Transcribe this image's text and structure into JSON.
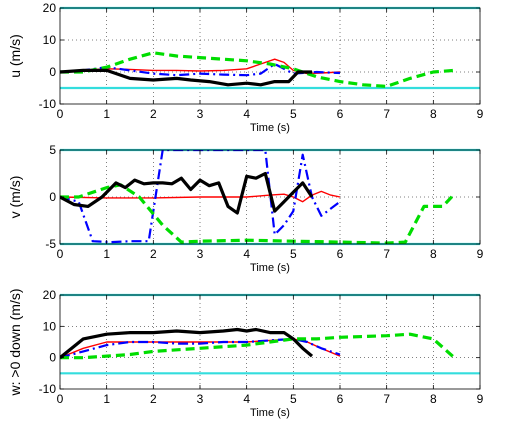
{
  "chart_data": [
    {
      "type": "line",
      "ylabel": "u (m/s)",
      "xlabel": "Time (s)",
      "xlim": [
        0,
        9
      ],
      "ylim": [
        -10,
        20
      ],
      "xticks": [
        0,
        1,
        2,
        3,
        4,
        5,
        6,
        7,
        8,
        9
      ],
      "yticks": [
        -10,
        0,
        10,
        20
      ],
      "grid": true,
      "limits": [
        20,
        -5
      ],
      "series": [
        {
          "color": "#ff0000",
          "style": "solid",
          "width": 1.4,
          "x": [
            0,
            0.5,
            1,
            1.5,
            2,
            2.5,
            3,
            3.5,
            4,
            4.3,
            4.6,
            4.8,
            5,
            5.3,
            5.6,
            6
          ],
          "y": [
            0,
            0.5,
            1,
            0.8,
            0.5,
            0.5,
            0.3,
            0.5,
            1,
            2.5,
            4,
            3,
            0.5,
            -0.5,
            -0.3,
            0
          ]
        },
        {
          "color": "#0000ff",
          "style": "dashdot",
          "width": 2.2,
          "x": [
            0,
            0.5,
            1,
            1.5,
            2,
            2.5,
            3,
            3.5,
            4,
            4.3,
            4.6,
            4.8,
            5,
            5.5,
            6
          ],
          "y": [
            0,
            0.5,
            1.5,
            0.5,
            -0.5,
            -1,
            -0.5,
            -0.8,
            -1,
            -0.5,
            2.5,
            1,
            -0.5,
            0,
            -0.3
          ]
        },
        {
          "color": "#00dd00",
          "style": "dashed",
          "width": 3.2,
          "x": [
            0,
            0.5,
            1,
            1.5,
            2,
            2.5,
            3,
            3.5,
            4,
            4.5,
            5,
            5.5,
            6,
            6.5,
            7,
            7.5,
            8,
            8.45
          ],
          "y": [
            0,
            0,
            1.5,
            4,
            6,
            5,
            4.5,
            4,
            3.5,
            2.5,
            1,
            -1.5,
            -3,
            -4,
            -4.5,
            -2,
            0,
            0.5
          ]
        },
        {
          "color": "#000000",
          "style": "solid",
          "width": 3.2,
          "x": [
            0,
            0.5,
            1,
            1.5,
            2,
            2.5,
            2.8,
            3.2,
            3.6,
            4,
            4.3,
            4.6,
            4.9,
            5.1,
            5.4
          ],
          "y": [
            0,
            0.5,
            0.5,
            -2,
            -2.5,
            -2,
            -2.5,
            -3,
            -4,
            -3.5,
            -4,
            -3,
            -3,
            0,
            0
          ]
        }
      ]
    },
    {
      "type": "line",
      "ylabel": "v (m/s)",
      "xlabel": "Time (s)",
      "xlim": [
        0,
        9
      ],
      "ylim": [
        -5,
        5
      ],
      "xticks": [
        0,
        1,
        2,
        3,
        4,
        5,
        6,
        7,
        8,
        9
      ],
      "yticks": [
        -5,
        0,
        5
      ],
      "grid": true,
      "limits": [
        5,
        -5
      ],
      "series": [
        {
          "color": "#ff0000",
          "style": "solid",
          "width": 1.4,
          "x": [
            0,
            1,
            2,
            3,
            4,
            4.5,
            4.8,
            5,
            5.2,
            5.4,
            5.6,
            5.8,
            6
          ],
          "y": [
            0,
            -0.1,
            -0.1,
            0,
            0,
            0.2,
            0.3,
            0,
            -0.5,
            0.2,
            0.6,
            0.2,
            0
          ]
        },
        {
          "color": "#0000ff",
          "style": "dashdot",
          "width": 2.2,
          "x": [
            0,
            0.4,
            0.7,
            1.1,
            1.5,
            1.9,
            2.2,
            2.4,
            2.8,
            3.2,
            3.6,
            4,
            4.2,
            4.4,
            4.6,
            4.8,
            5,
            5.2,
            5.4,
            5.6,
            6
          ],
          "y": [
            0,
            -0.5,
            -4.7,
            -4.8,
            -4.7,
            -4.7,
            5,
            5,
            5,
            5,
            5,
            5,
            5,
            5,
            -4,
            -3,
            -1.5,
            4.5,
            0,
            -2,
            -0.5
          ]
        },
        {
          "color": "#00dd00",
          "style": "dashed",
          "width": 3.2,
          "x": [
            0,
            0.4,
            1,
            1.3,
            1.7,
            2.2,
            2.6,
            3,
            4,
            5,
            6,
            7,
            7.4,
            7.8,
            8.2,
            8.45
          ],
          "y": [
            0,
            0,
            1,
            1.3,
            0,
            -3,
            -4.8,
            -4.7,
            -4.6,
            -4.7,
            -4.8,
            -4.9,
            -4.8,
            -1,
            -1,
            0.3
          ]
        },
        {
          "color": "#000000",
          "style": "solid",
          "width": 3.2,
          "x": [
            0,
            0.3,
            0.6,
            0.9,
            1.2,
            1.4,
            1.6,
            1.8,
            2,
            2.2,
            2.4,
            2.6,
            2.8,
            3,
            3.2,
            3.4,
            3.6,
            3.8,
            4,
            4.2,
            4.4,
            4.6,
            4.8,
            5,
            5.2,
            5.4
          ],
          "y": [
            0,
            -0.8,
            -1,
            0,
            1.5,
            1,
            1.8,
            1.4,
            1.5,
            1.5,
            1.4,
            2,
            0.8,
            1.8,
            1.2,
            1.5,
            -1,
            -1.7,
            2.2,
            2,
            2.5,
            -1.5,
            -0.5,
            0.5,
            1.5,
            0
          ]
        }
      ]
    },
    {
      "type": "line",
      "ylabel": "w: >0 down (m/s)",
      "xlabel": "Time (s)",
      "xlim": [
        0,
        9
      ],
      "ylim": [
        -10,
        20
      ],
      "xticks": [
        0,
        1,
        2,
        3,
        4,
        5,
        6,
        7,
        8,
        9
      ],
      "yticks": [
        -10,
        0,
        10,
        20
      ],
      "grid": true,
      "limits": [
        20,
        -5
      ],
      "series": [
        {
          "color": "#ff0000",
          "style": "solid",
          "width": 1.4,
          "x": [
            0,
            0.5,
            1,
            2,
            3,
            4,
            4.5,
            5,
            5.3,
            5.6,
            6
          ],
          "y": [
            0,
            3,
            5,
            5,
            5,
            5,
            5.5,
            6,
            5,
            3,
            0.5
          ]
        },
        {
          "color": "#0000ff",
          "style": "dashdot",
          "width": 2.2,
          "x": [
            0,
            0.5,
            1,
            1.5,
            2,
            2.5,
            3,
            3.5,
            4,
            4.5,
            5,
            5.3,
            5.6,
            6
          ],
          "y": [
            0,
            2,
            4,
            5,
            5,
            4.5,
            4.5,
            5,
            5,
            5.5,
            6,
            5,
            3,
            1
          ]
        },
        {
          "color": "#00dd00",
          "style": "dashed",
          "width": 3.2,
          "x": [
            0,
            0.5,
            1,
            1.5,
            2,
            3,
            4,
            4.5,
            5,
            5.5,
            6,
            7,
            7.5,
            8,
            8.3,
            8.45
          ],
          "y": [
            0,
            0,
            0.5,
            1,
            2,
            3,
            4,
            5,
            6,
            6,
            6.5,
            7,
            7.5,
            6,
            2,
            0
          ]
        },
        {
          "color": "#000000",
          "style": "solid",
          "width": 3.2,
          "x": [
            0,
            0.5,
            1,
            1.5,
            2,
            2.5,
            3,
            3.5,
            3.8,
            4,
            4.2,
            4.5,
            4.8,
            5,
            5.2,
            5.4
          ],
          "y": [
            0,
            6,
            7.5,
            8,
            8,
            8.5,
            8,
            8.5,
            9,
            8.5,
            9,
            8,
            8,
            6,
            3,
            0.5
          ]
        }
      ]
    }
  ]
}
